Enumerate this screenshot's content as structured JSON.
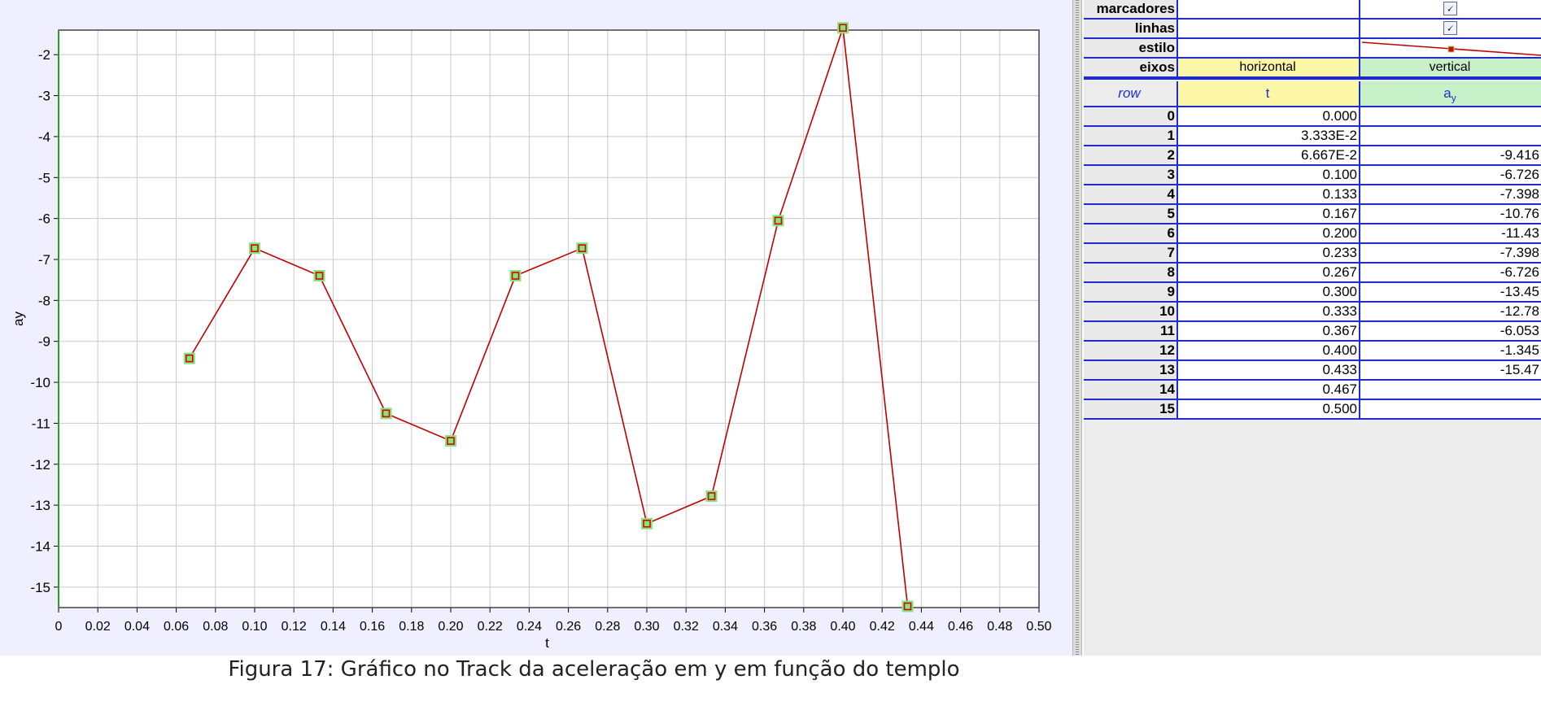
{
  "chart_data": {
    "type": "line",
    "xlabel": "t",
    "ylabel": "ay",
    "xlim": [
      0,
      0.5
    ],
    "ylim": [
      -15.5,
      -1.4
    ],
    "x_ticks": [
      "0",
      "0.02",
      "0.04",
      "0.06",
      "0.08",
      "0.10",
      "0.12",
      "0.14",
      "0.16",
      "0.18",
      "0.20",
      "0.22",
      "0.24",
      "0.26",
      "0.28",
      "0.30",
      "0.32",
      "0.34",
      "0.36",
      "0.38",
      "0.40",
      "0.42",
      "0.44",
      "0.46",
      "0.48",
      "0.50"
    ],
    "y_ticks": [
      "-2",
      "-3",
      "-4",
      "-5",
      "-6",
      "-7",
      "-8",
      "-9",
      "-10",
      "-11",
      "-12",
      "-13",
      "-14",
      "-15"
    ],
    "grid": true,
    "series": [
      {
        "x": [
          0.0667,
          0.1,
          0.133,
          0.167,
          0.2,
          0.233,
          0.267,
          0.3,
          0.333,
          0.367,
          0.4,
          0.433
        ],
        "y": [
          -9.416,
          -6.726,
          -7.398,
          -10.76,
          -11.43,
          -7.398,
          -6.726,
          -13.45,
          -12.78,
          -6.053,
          -1.345,
          -15.47
        ],
        "line_color": "#c00000",
        "marker_color": "#e00000",
        "marker_highlight": "#7ee77e"
      }
    ]
  },
  "table": {
    "settings": [
      {
        "label": "marcadores",
        "col2": "",
        "col3_check": "🗸"
      },
      {
        "label": "linhas",
        "col2": "",
        "col3_check": "🗸"
      },
      {
        "label": "estilo",
        "col2": "",
        "col3_check": ""
      },
      {
        "label": "eixos",
        "col2": "horizontal",
        "col3": "vertical"
      }
    ],
    "header": {
      "row": "row",
      "t": "t",
      "ay_main": "a",
      "ay_sub": "y"
    },
    "rows": [
      [
        "0",
        "0.000",
        ""
      ],
      [
        "1",
        "3.333E-2",
        ""
      ],
      [
        "2",
        "6.667E-2",
        "-9.416"
      ],
      [
        "3",
        "0.100",
        "-6.726"
      ],
      [
        "4",
        "0.133",
        "-7.398"
      ],
      [
        "5",
        "0.167",
        "-10.76"
      ],
      [
        "6",
        "0.200",
        "-11.43"
      ],
      [
        "7",
        "0.233",
        "-7.398"
      ],
      [
        "8",
        "0.267",
        "-6.726"
      ],
      [
        "9",
        "0.300",
        "-13.45"
      ],
      [
        "10",
        "0.333",
        "-12.78"
      ],
      [
        "11",
        "0.367",
        "-6.053"
      ],
      [
        "12",
        "0.400",
        "-1.345"
      ],
      [
        "13",
        "0.433",
        "-15.47"
      ],
      [
        "14",
        "0.467",
        ""
      ],
      [
        "15",
        "0.500",
        ""
      ]
    ]
  },
  "caption": "Figura 17: Gráfico no Track da aceleração em y em função do templo"
}
